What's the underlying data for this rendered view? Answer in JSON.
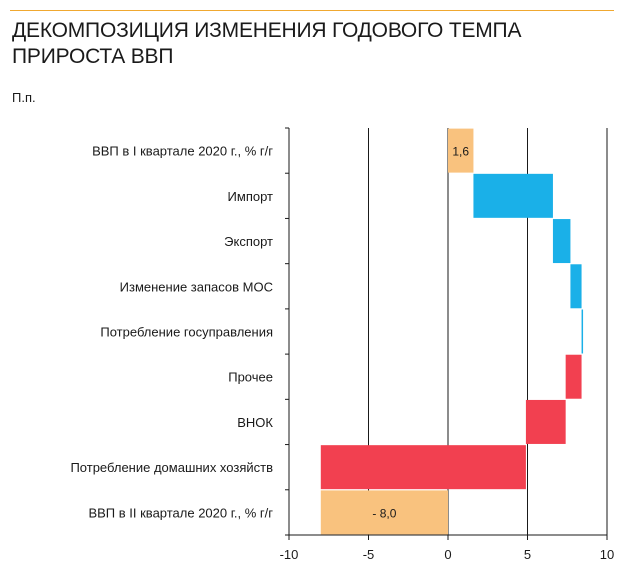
{
  "header": {
    "title_line1": "ДЕКОМПОЗИЦИЯ ИЗМЕНЕНИЯ ГОДОВОГО ТЕМПА",
    "title_line2": "ПРИРОСТА ВВП",
    "unit": "П.п."
  },
  "colors": {
    "total": "#f9c27e",
    "increase": "#1ab0e8",
    "decrease": "#f24050",
    "grid": "#1a1a1a",
    "accent_rule": "#f0a830"
  },
  "chart_data": {
    "type": "bar",
    "subtype": "waterfall-horizontal",
    "title": "ДЕКОМПОЗИЦИЯ ИЗМЕНЕНИЯ ГОДОВОГО ТЕМПА ПРИРОСТА ВВП",
    "ylabel": "П.п.",
    "xlim": [
      -10,
      10
    ],
    "xticks": [
      "-10",
      "-5",
      "0",
      "5",
      "10"
    ],
    "xtick_values": [
      -10,
      -5,
      0,
      5,
      10
    ],
    "grid": "vertical",
    "categories": [
      "ВВП в I квартале 2020 г., % г/г",
      "Импорт",
      "Экспорт",
      "Изменение запасов МОС",
      "Потребление госуправления",
      "Прочее",
      "ВНОК",
      "Потребление домашних хозяйств",
      "ВВП в II квартале 2020 г., % г/г"
    ],
    "bars": [
      {
        "kind": "total",
        "start": 0,
        "end": 1.6,
        "label": "1,6"
      },
      {
        "kind": "increase",
        "start": 1.6,
        "end": 6.6
      },
      {
        "kind": "increase",
        "start": 6.6,
        "end": 7.7
      },
      {
        "kind": "increase",
        "start": 7.7,
        "end": 8.4
      },
      {
        "kind": "increase",
        "start": 8.4,
        "end": 8.45
      },
      {
        "kind": "decrease",
        "start": 8.4,
        "end": 7.4
      },
      {
        "kind": "decrease",
        "start": 7.4,
        "end": 4.9
      },
      {
        "kind": "decrease",
        "start": 4.9,
        "end": -8.0
      },
      {
        "kind": "total",
        "start": 0,
        "end": -8.0,
        "label": "- 8,0"
      }
    ]
  }
}
